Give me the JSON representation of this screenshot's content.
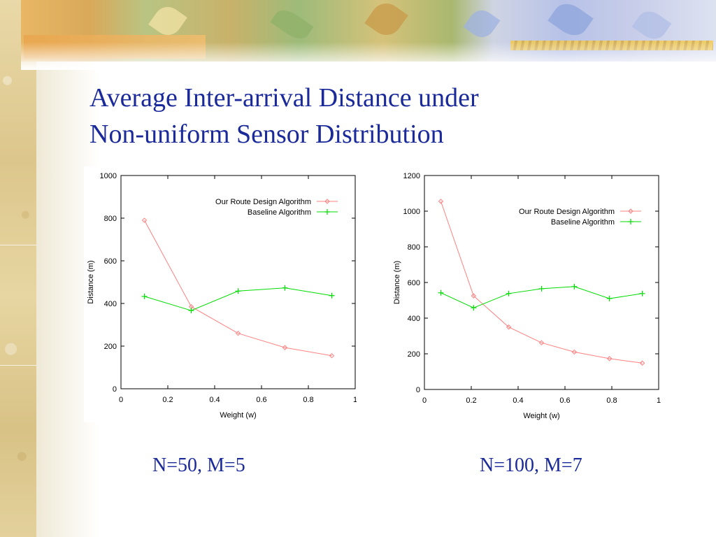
{
  "slide": {
    "title_line1": "Average Inter-arrival Distance under",
    "title_line2": "Non-uniform Sensor Distribution",
    "captions": [
      "N=50, M=5",
      "N=100, M=7"
    ]
  },
  "colors": {
    "title": "#1b2a9a",
    "series_route": "#ff8080",
    "series_baseline": "#00dd00"
  },
  "chart_data": [
    {
      "type": "line",
      "title": "",
      "xlabel": "Weight (w)",
      "ylabel": "Distance (m)",
      "xlim": [
        0,
        1
      ],
      "ylim": [
        0,
        1000
      ],
      "xticks": [
        "0",
        "0.2",
        "0.4",
        "0.6",
        "0.8",
        "1"
      ],
      "yticks": [
        "0",
        "200",
        "400",
        "600",
        "800",
        "1000"
      ],
      "grid": false,
      "legend_position": "top-right",
      "series": [
        {
          "name": "Our Route Design Algorithm",
          "marker": "diamond",
          "x": [
            0.1,
            0.3,
            0.5,
            0.7,
            0.9
          ],
          "y": [
            790,
            385,
            260,
            193,
            155
          ]
        },
        {
          "name": "Baseline Algorithm",
          "marker": "plus",
          "x": [
            0.1,
            0.3,
            0.5,
            0.7,
            0.9
          ],
          "y": [
            433,
            367,
            458,
            473,
            437
          ]
        }
      ]
    },
    {
      "type": "line",
      "title": "",
      "xlabel": "Weight (w)",
      "ylabel": "Distance (m)",
      "xlim": [
        0,
        1
      ],
      "ylim": [
        0,
        1200
      ],
      "xticks": [
        "0",
        "0.2",
        "0.4",
        "0.6",
        "0.8",
        "1"
      ],
      "yticks": [
        "0",
        "200",
        "400",
        "600",
        "800",
        "1000",
        "1200"
      ],
      "grid": false,
      "legend_position": "top-right",
      "series": [
        {
          "name": "Our Route Design Algorithm",
          "marker": "diamond",
          "x": [
            0.07,
            0.21,
            0.36,
            0.5,
            0.64,
            0.79,
            0.93
          ],
          "y": [
            1055,
            525,
            350,
            262,
            210,
            173,
            148
          ]
        },
        {
          "name": "Baseline Algorithm",
          "marker": "plus",
          "x": [
            0.07,
            0.21,
            0.36,
            0.5,
            0.64,
            0.79,
            0.93
          ],
          "y": [
            542,
            458,
            538,
            565,
            577,
            510,
            538
          ]
        }
      ]
    }
  ]
}
